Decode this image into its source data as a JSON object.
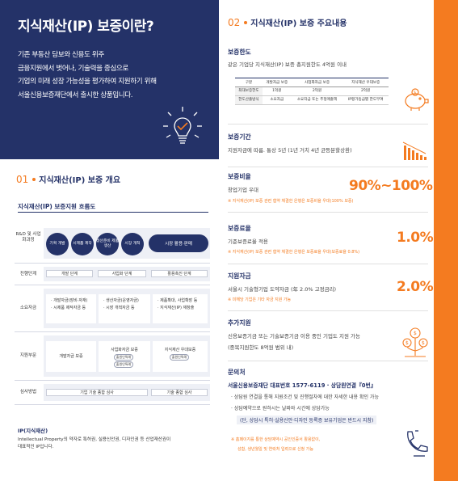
{
  "hero": {
    "title": "지식재산(IP) 보증이란?",
    "lines": [
      "기존 부동산 담보와 신용도 위주",
      "금융지원에서 벗어나, 기술력을 중심으로",
      "기업의 미래 성장 가능성을 평가하여 지원하기 위해",
      "서울신용보증재단에서 출시한 상품입니다."
    ],
    "icon": "lightbulb-check-icon"
  },
  "section1": {
    "num": "01",
    "title": "지식재산(IP) 보증 개요",
    "flow_title": "지식재산(IP) 보증지원 흐름도",
    "row_labels": [
      "R&D 및 사업화과정",
      "진행단계",
      "소요자금",
      "지원부문",
      "심사방법"
    ],
    "steps": [
      "기획 개발",
      "시제품 제작",
      "생산준비 제품생산",
      "시장 개척",
      "시장 활용·판매"
    ],
    "stages": [
      "개발 단계",
      "사업화 단계",
      "활용촉진 단계"
    ],
    "funds": [
      [
        "· 개발자금(장비·자재)",
        "· 시제품 제작자금 등"
      ],
      [
        "· 생산자금(운영자금)",
        "· 시장 개척자금 등"
      ],
      [
        "· 제품확대, 사업확장 등",
        "· 지식재산(IP) 재창출"
      ]
    ],
    "support": {
      "dev": "개발자금 보증",
      "biz": "사업화자금 보증",
      "biz_tags": [
        "출원인특례",
        "출원인특례"
      ],
      "use": "지식재산 우대보증",
      "use_tags": [
        "출원인특례"
      ]
    },
    "review": [
      "기업 기술 종합 심사",
      "기술 종합 심사"
    ]
  },
  "ip_note": {
    "title": "IP(지식재산)",
    "lines": [
      "Intellectual Property의 약자로 특허권, 실용신안권, 디자인권 등 산업재산권이",
      "대표적인 IP입니다."
    ]
  },
  "section2": {
    "num": "02",
    "title": "지식재산(IP) 보증 주요내용",
    "limit": {
      "title": "보증한도",
      "desc": "같은 기업당 지식재산(IP) 보증 총지원한도 4억원 이내",
      "headers": [
        "구분",
        "개발자금 보증",
        "사업화자금 보증",
        "지식재산 우대보증"
      ],
      "rows": [
        [
          "최대보증한도",
          "1억원",
          "2억원",
          "2억원"
        ],
        [
          "한도산출방식",
          "소요자금",
          "소요자금 또는 추정매출액",
          "IP평가등급별 한도부여"
        ]
      ]
    },
    "period": {
      "title": "보증기간",
      "desc": "지원자금에 따름. 통상 5년 (1년 거치 4년 균등분할상환)"
    },
    "ratio": {
      "title": "보증비율",
      "desc": "창업기업 우대",
      "big": "90%~100%",
      "note": "※ 지식재산(IP) 보증 관련 협약 체결한 은행은 보증비율 우대(100% 보증)"
    },
    "fee": {
      "title": "보증료율",
      "desc": "기준보증료율 적용",
      "big": "1.0%",
      "note": "※ 지식재산(IP) 보증 관련 협약 체결한 은행은 보증료율 우대(보증료율 0.8%)"
    },
    "fund": {
      "title": "지원자금",
      "desc": "서울시 기술형기업 도약자금 (年 2.0% 고정금리)",
      "big": "2.0%",
      "note": "※ 미해당 기업은 기타 자금 지원 가능"
    },
    "extra": {
      "title": "추가지원",
      "lines": [
        "신용보증기금 또는 기술보증기금 이용 중인 기업도 지원 가능",
        "(중복지원한도 8억원 범위 내)"
      ]
    },
    "contact": {
      "title": "문의처",
      "main": "서울신용보증재단 대표번호 1577-6119 · 상담원연결『0번』",
      "lines": [
        "· 상담원 연결을 통해 지원조건 및 진행절차에 대한 자세한 내용 확인 가능",
        "· 상담예약으로 원하시는 날짜와 시간에 상담가능"
      ],
      "highlight": "(단, 상담시 특허·실용신안·디자인 등록증 보유기업은 반드시 지참)",
      "notes": [
        "※ 홈페이지를 통한 상담예약시 공인인증서 활용없이,",
        "성함, 생년월일 및 연락처 입력으로 신청 가능"
      ]
    }
  },
  "colors": {
    "navy": "#243268",
    "orange": "#f47b20",
    "light": "#eef0f6"
  }
}
